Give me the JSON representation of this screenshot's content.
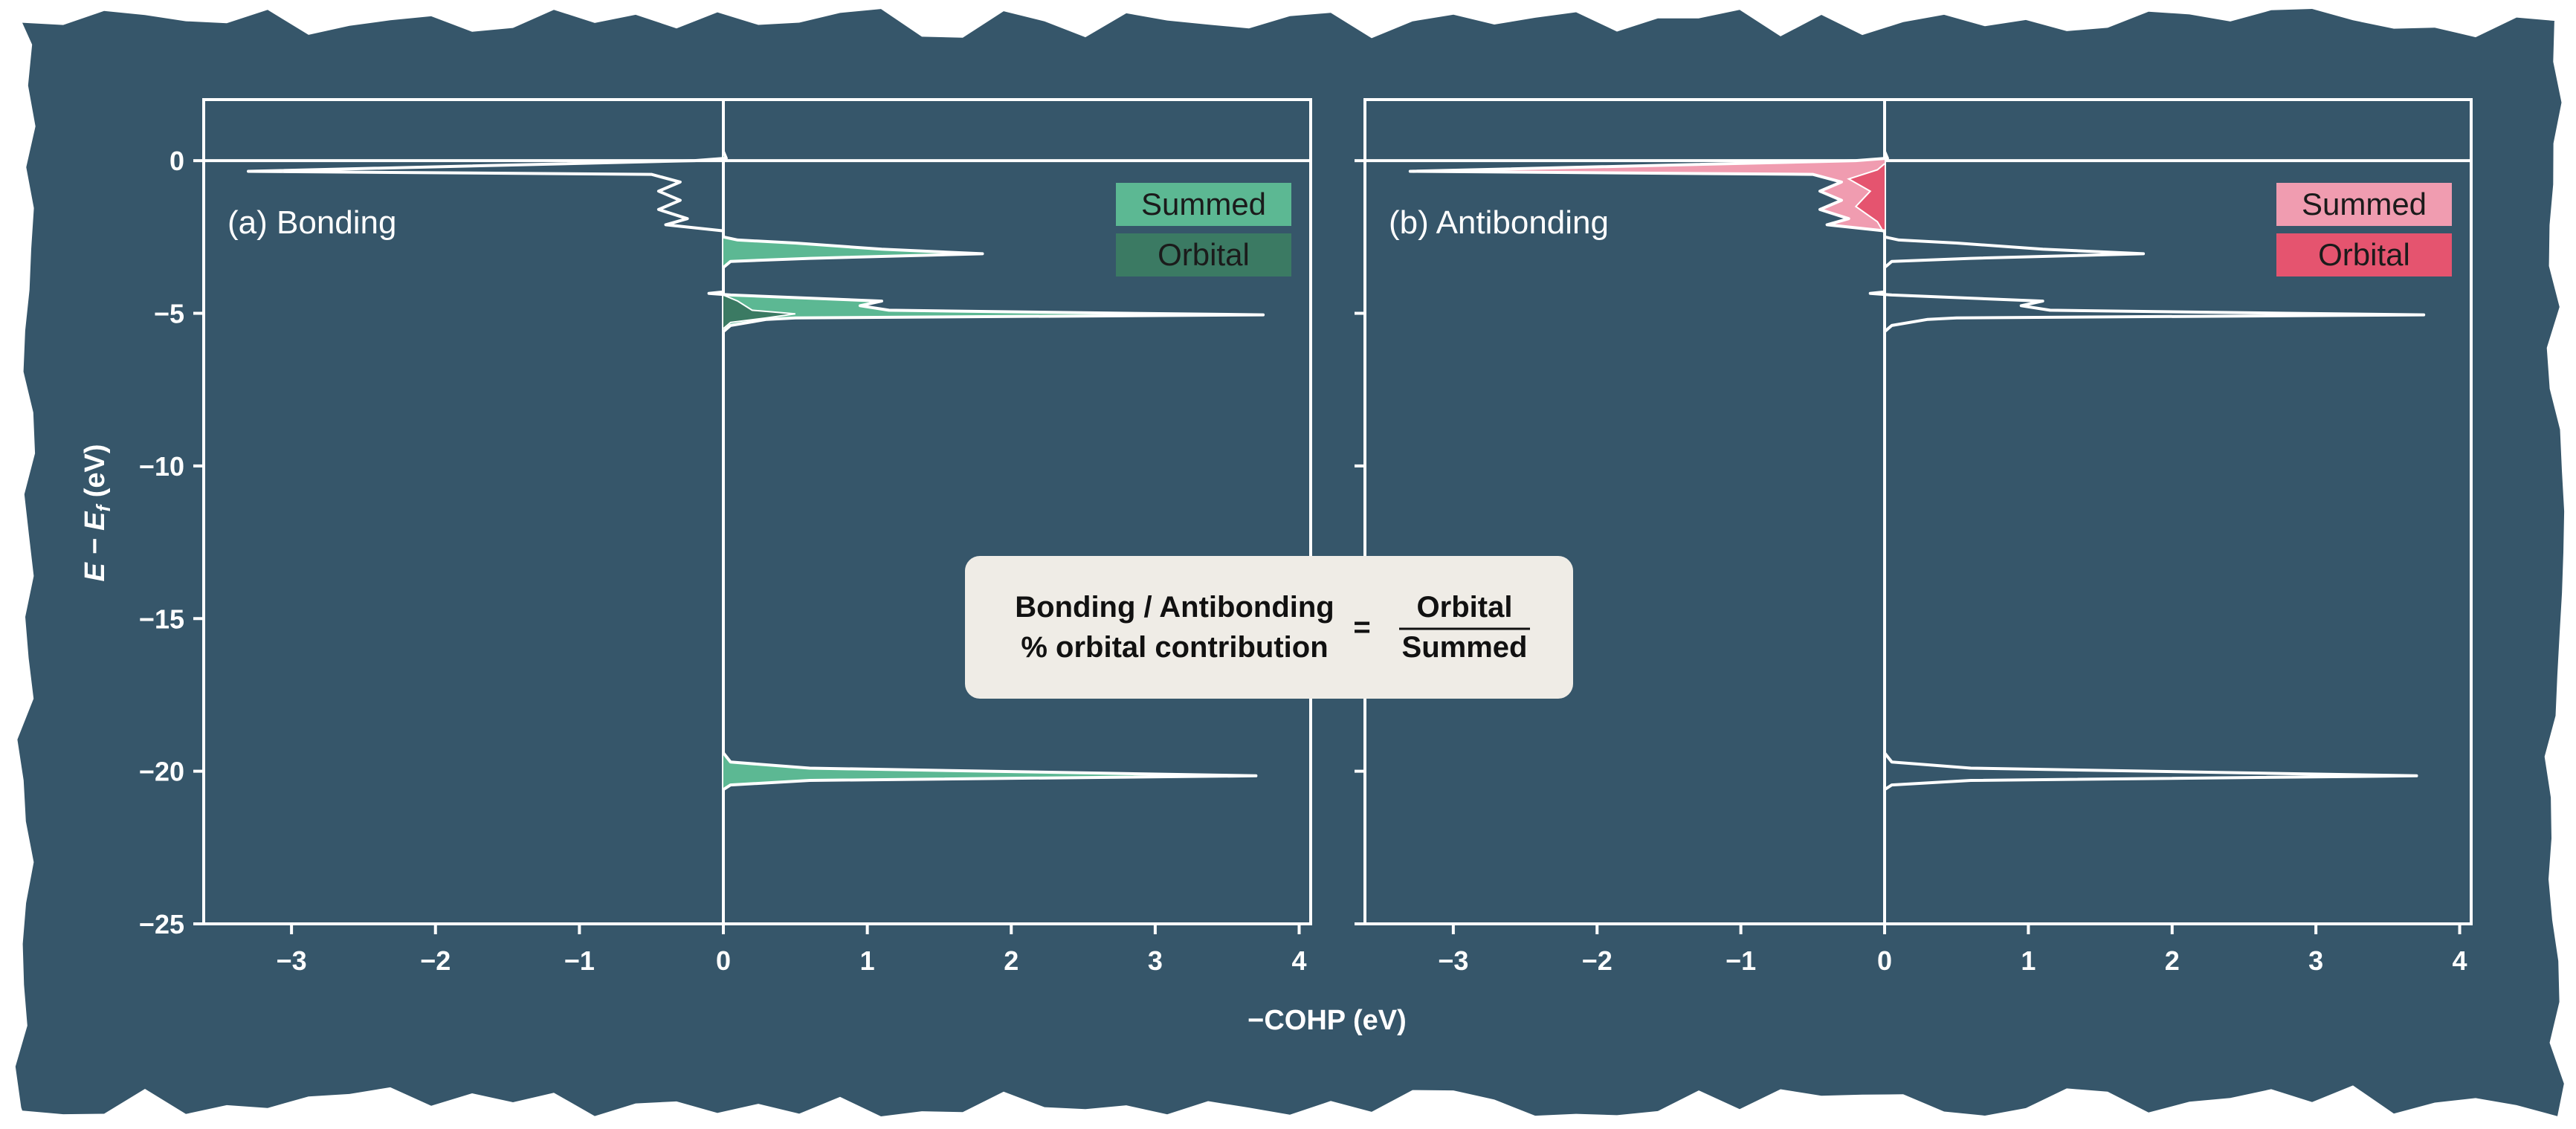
{
  "colors": {
    "background": "#36566a",
    "axis": "#ffffff",
    "curve": "#ffffff",
    "bonding_summed": "#5cb893",
    "bonding_orbital": "#3b7a63",
    "antibonding_summed": "#f09cb0",
    "antibonding_orbital": "#e5546f",
    "formula_box": "#efece6"
  },
  "axes": {
    "xlabel": "−COHP (eV)",
    "ylabel_main": "E − E",
    "ylabel_sub": "f",
    "ylabel_unit": " (eV)"
  },
  "formula": {
    "left_line1": "Bonding / Antibonding",
    "left_line2": "% orbital contribution",
    "equals": "=",
    "numerator": "Orbital",
    "denominator": "Summed"
  },
  "chart_data": [
    {
      "type": "area",
      "panel_label": "(a) Bonding",
      "xlabel": "−COHP (eV)",
      "ylabel": "E − Ef (eV)",
      "xlim": [
        -3.6,
        4.1
      ],
      "ylim": [
        -25,
        2
      ],
      "xticks": [
        -3,
        -2,
        -1,
        0,
        1,
        2,
        3,
        4
      ],
      "yticks": [
        0,
        -5,
        -10,
        -15,
        -20,
        -25
      ],
      "highlight": "positive",
      "legend": {
        "position": "top-right",
        "entries": [
          "Summed",
          "Orbital"
        ]
      },
      "series": [
        {
          "name": "Summed",
          "points": [
            [
              0,
              1.5
            ],
            [
              0,
              0.3
            ],
            [
              0.02,
              0.08
            ],
            [
              -0.2,
              0
            ],
            [
              -3.3,
              -0.35
            ],
            [
              -0.5,
              -0.45
            ],
            [
              -0.3,
              -0.7
            ],
            [
              -0.45,
              -1.0
            ],
            [
              -0.3,
              -1.3
            ],
            [
              -0.45,
              -1.6
            ],
            [
              -0.25,
              -1.9
            ],
            [
              -0.4,
              -2.1
            ],
            [
              0,
              -2.3
            ],
            [
              0,
              -2.5
            ],
            [
              0.1,
              -2.6
            ],
            [
              0.5,
              -2.7
            ],
            [
              1.1,
              -2.9
            ],
            [
              1.8,
              -3.05
            ],
            [
              0.6,
              -3.2
            ],
            [
              0.05,
              -3.3
            ],
            [
              0,
              -3.5
            ],
            [
              0,
              -4.3
            ],
            [
              -0.1,
              -4.35
            ],
            [
              0.05,
              -4.4
            ],
            [
              1.1,
              -4.6
            ],
            [
              0.95,
              -4.75
            ],
            [
              1.15,
              -4.9
            ],
            [
              2.8,
              -5.0
            ],
            [
              3.75,
              -5.05
            ],
            [
              0.5,
              -5.15
            ],
            [
              0.3,
              -5.2
            ],
            [
              0.05,
              -5.4
            ],
            [
              0,
              -5.6
            ],
            [
              0,
              -19.4
            ],
            [
              0.05,
              -19.7
            ],
            [
              0.6,
              -19.9
            ],
            [
              3.7,
              -20.15
            ],
            [
              0.6,
              -20.3
            ],
            [
              0.05,
              -20.45
            ],
            [
              0,
              -20.6
            ],
            [
              0,
              -25
            ]
          ]
        },
        {
          "name": "Orbital",
          "points": [
            [
              0,
              -4.4
            ],
            [
              0.1,
              -4.6
            ],
            [
              0.2,
              -4.9
            ],
            [
              0.5,
              -5.02
            ],
            [
              0.3,
              -5.15
            ],
            [
              0.05,
              -5.3
            ],
            [
              0,
              -5.5
            ]
          ]
        }
      ]
    },
    {
      "type": "area",
      "panel_label": "(b) Antibonding",
      "xlabel": "−COHP (eV)",
      "ylabel": "E − Ef (eV)",
      "xlim": [
        -3.6,
        4.1
      ],
      "ylim": [
        -25,
        2
      ],
      "xticks": [
        -3,
        -2,
        -1,
        0,
        1,
        2,
        3,
        4
      ],
      "yticks": [
        0,
        -5,
        -10,
        -15,
        -20,
        -25
      ],
      "highlight": "negative",
      "legend": {
        "position": "top-right",
        "entries": [
          "Summed",
          "Orbital"
        ]
      },
      "series": [
        {
          "name": "Summed",
          "points": [
            [
              0,
              1.5
            ],
            [
              0,
              0.3
            ],
            [
              0.02,
              0.08
            ],
            [
              -0.2,
              0
            ],
            [
              -3.3,
              -0.35
            ],
            [
              -0.5,
              -0.45
            ],
            [
              -0.3,
              -0.7
            ],
            [
              -0.45,
              -1.0
            ],
            [
              -0.3,
              -1.3
            ],
            [
              -0.45,
              -1.6
            ],
            [
              -0.25,
              -1.9
            ],
            [
              -0.4,
              -2.1
            ],
            [
              0,
              -2.3
            ],
            [
              0,
              -2.5
            ],
            [
              0.1,
              -2.6
            ],
            [
              0.5,
              -2.7
            ],
            [
              1.1,
              -2.9
            ],
            [
              1.8,
              -3.05
            ],
            [
              0.6,
              -3.2
            ],
            [
              0.05,
              -3.3
            ],
            [
              0,
              -3.5
            ],
            [
              0,
              -4.3
            ],
            [
              -0.1,
              -4.35
            ],
            [
              0.05,
              -4.4
            ],
            [
              1.1,
              -4.6
            ],
            [
              0.95,
              -4.75
            ],
            [
              1.15,
              -4.9
            ],
            [
              2.8,
              -5.0
            ],
            [
              3.75,
              -5.05
            ],
            [
              0.5,
              -5.15
            ],
            [
              0.3,
              -5.2
            ],
            [
              0.05,
              -5.4
            ],
            [
              0,
              -5.6
            ],
            [
              0,
              -19.4
            ],
            [
              0.05,
              -19.7
            ],
            [
              0.6,
              -19.9
            ],
            [
              3.7,
              -20.15
            ],
            [
              0.6,
              -20.3
            ],
            [
              0.05,
              -20.45
            ],
            [
              0,
              -20.6
            ],
            [
              0,
              -25
            ]
          ]
        },
        {
          "name": "Orbital",
          "points": [
            [
              0,
              -0.1
            ],
            [
              -0.05,
              -0.3
            ],
            [
              -0.25,
              -0.6
            ],
            [
              -0.1,
              -1.0
            ],
            [
              -0.2,
              -1.5
            ],
            [
              -0.05,
              -2.0
            ],
            [
              0,
              -2.4
            ]
          ]
        }
      ]
    }
  ]
}
